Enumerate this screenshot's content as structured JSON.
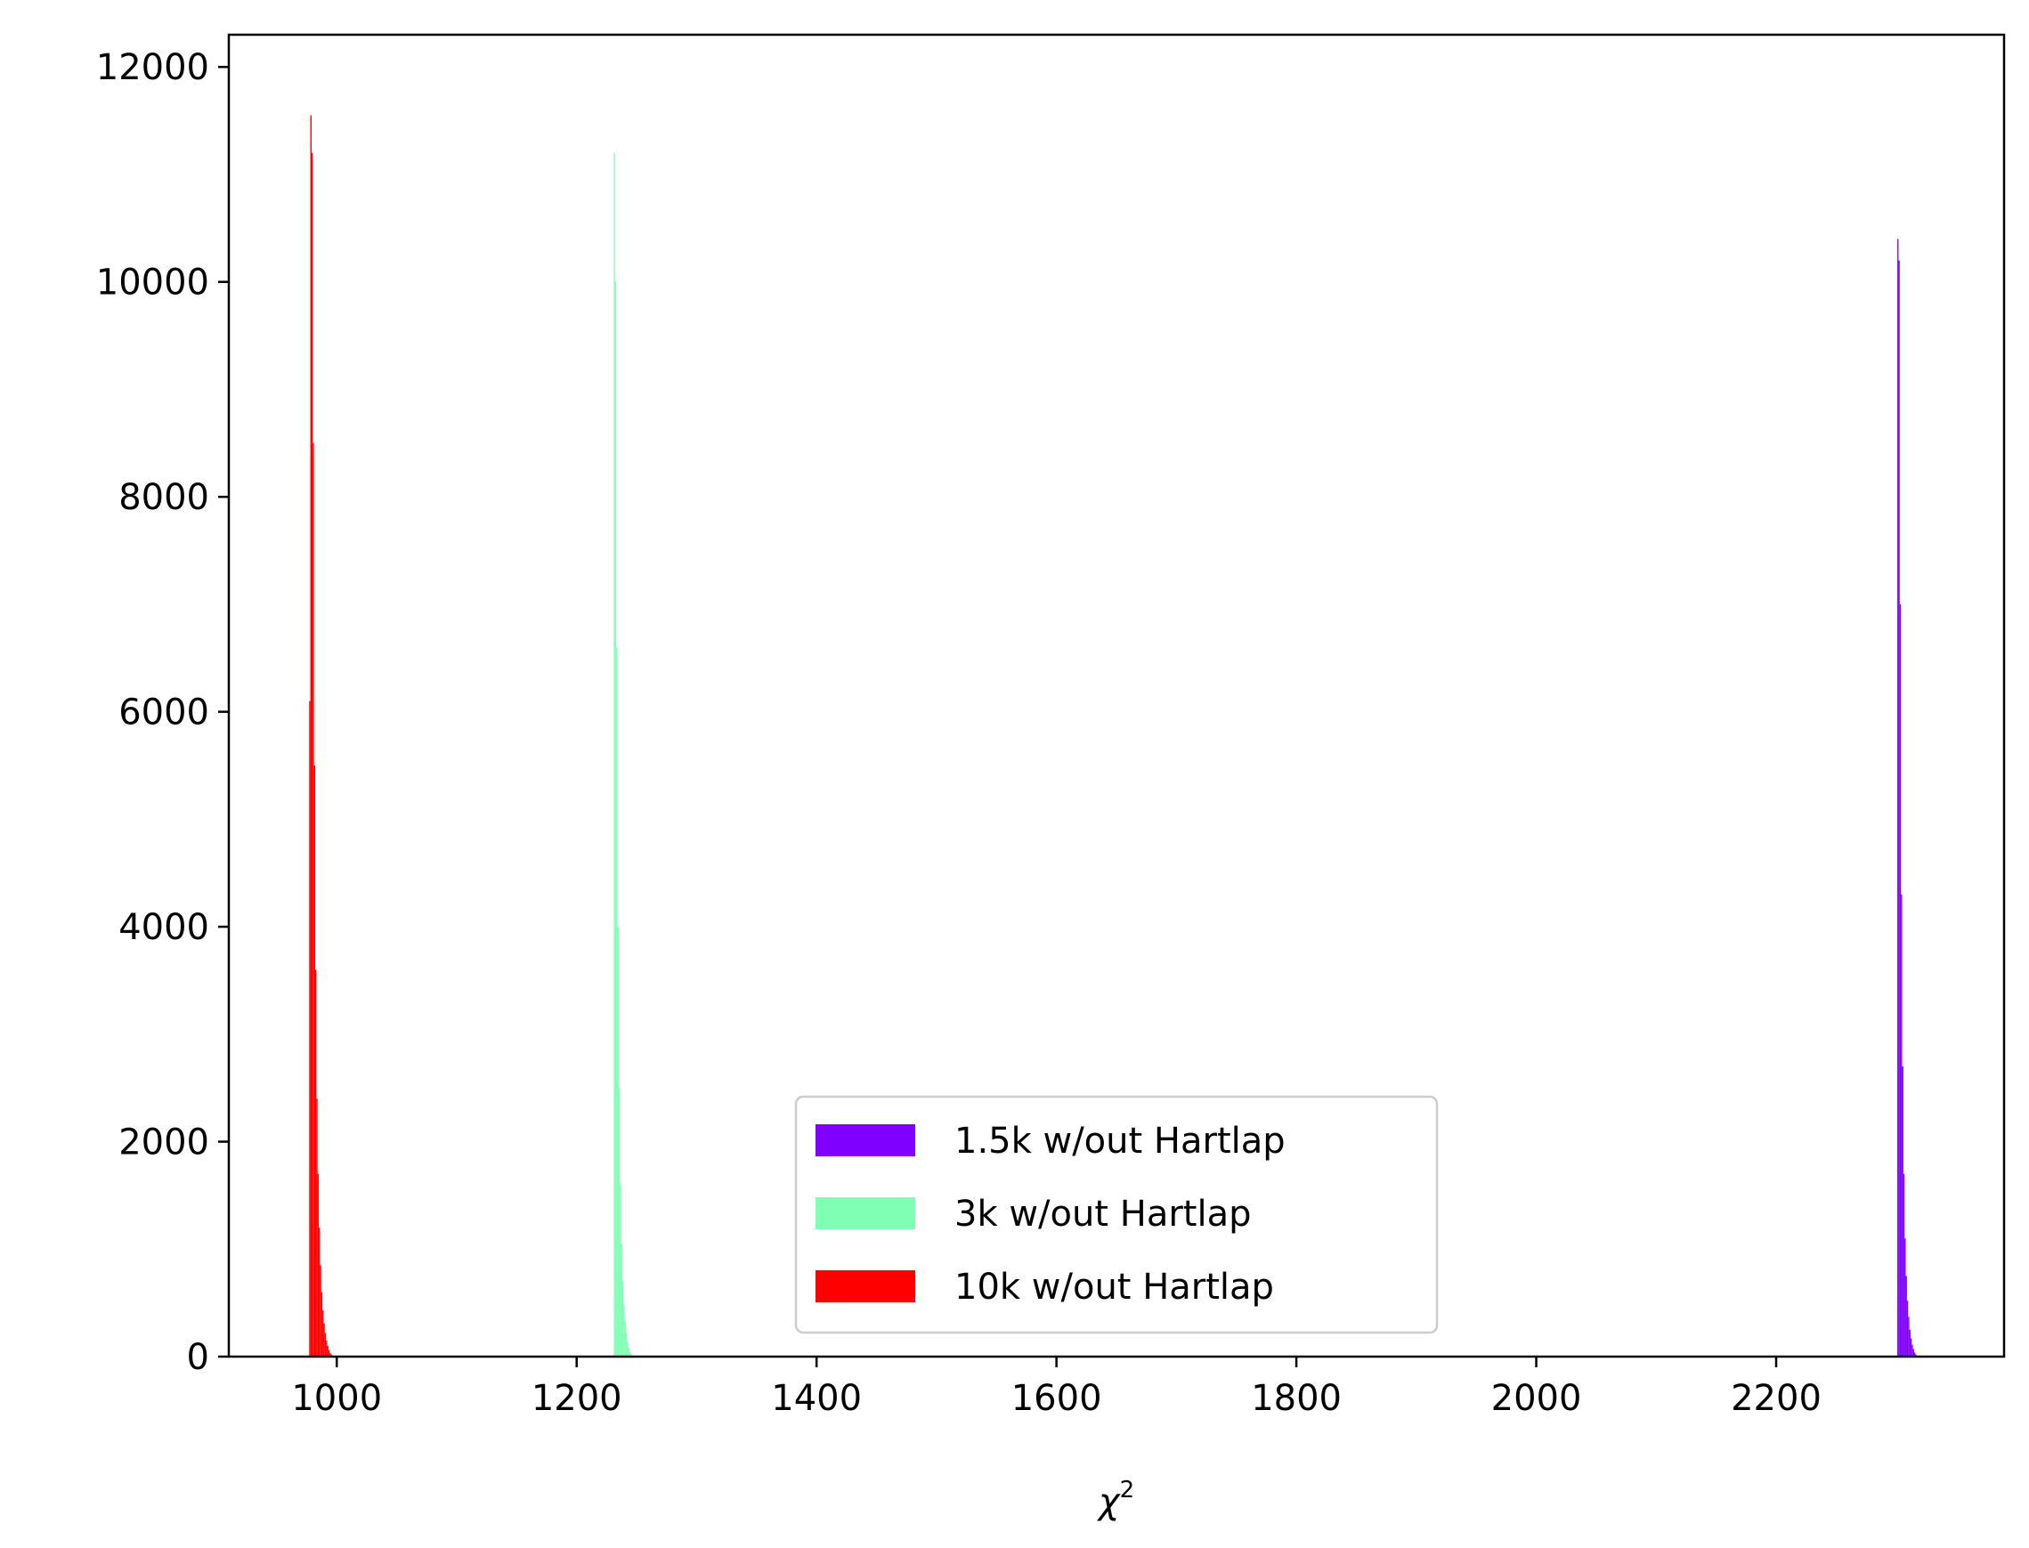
{
  "chart_data": {
    "type": "histogram",
    "xlabel_base": "χ",
    "xlabel_sup": "2",
    "xlim": [
      910,
      2390
    ],
    "ylim": [
      0,
      12300
    ],
    "xticks": [
      1000,
      1200,
      1400,
      1600,
      1800,
      2000,
      2200
    ],
    "xtick_labels": [
      "1000",
      "1200",
      "1400",
      "1600",
      "1800",
      "2000",
      "2200"
    ],
    "yticks": [
      0,
      2000,
      4000,
      6000,
      8000,
      10000,
      12000
    ],
    "ytick_labels": [
      "0",
      "2000",
      "4000",
      "6000",
      "8000",
      "10000",
      "12000"
    ],
    "legend_position": "lower-center",
    "series": [
      {
        "name": "1.5k w/out Hartlap",
        "color": "#8000ff",
        "bin_width": 1,
        "x": [
          2301,
          2302,
          2303,
          2304,
          2305,
          2306,
          2307,
          2308,
          2309,
          2310,
          2311,
          2312,
          2313,
          2314,
          2315,
          2316,
          2317
        ],
        "counts": [
          10400,
          10200,
          7000,
          4300,
          2700,
          1700,
          1100,
          750,
          520,
          370,
          250,
          170,
          110,
          70,
          40,
          20,
          8
        ]
      },
      {
        "name": "3k w/out Hartlap",
        "color": "#80ffb4",
        "bin_width": 1,
        "x": [
          1231,
          1232,
          1233,
          1234,
          1235,
          1236,
          1237,
          1238,
          1239,
          1240,
          1241,
          1242,
          1243,
          1244,
          1245
        ],
        "counts": [
          11200,
          10000,
          6600,
          4000,
          2500,
          1600,
          1050,
          700,
          480,
          330,
          220,
          140,
          80,
          40,
          15
        ]
      },
      {
        "name": "10k w/out Hartlap",
        "color": "#ff0000",
        "bin_width": 1,
        "x": [
          977,
          978,
          979,
          980,
          981,
          982,
          983,
          984,
          985,
          986,
          987,
          988,
          989,
          990,
          991,
          992,
          993,
          994,
          995,
          996,
          997
        ],
        "counts": [
          6100,
          11550,
          11200,
          8500,
          5500,
          3600,
          2400,
          1700,
          1200,
          850,
          600,
          430,
          310,
          220,
          150,
          100,
          60,
          35,
          20,
          10,
          5
        ]
      }
    ]
  }
}
